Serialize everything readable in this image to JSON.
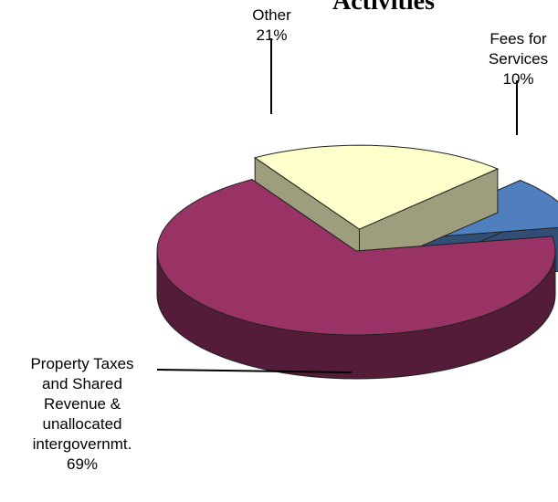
{
  "chart_data": {
    "type": "pie3d",
    "title": "Activities",
    "categories": [
      "Fees for\nServices",
      "Other",
      "Property Taxes\nand Shared\nRevenue &\nunallocated\nintergovernmt."
    ],
    "values": [
      10,
      21,
      69
    ],
    "value_labels": [
      "10%",
      "21%",
      "69%"
    ],
    "colors": [
      "#4f7fbf",
      "#ffffcc",
      "#993366"
    ]
  }
}
